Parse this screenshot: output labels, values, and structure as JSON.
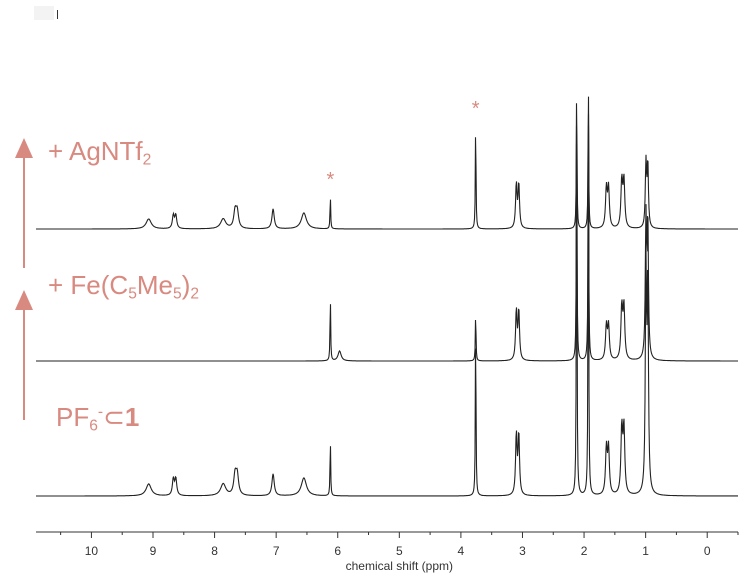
{
  "labels": {
    "top": {
      "main": "+ AgNTf",
      "sub": "2"
    },
    "middle": {
      "prefix": "+ Fe(C",
      "sub1": "5",
      "mid": "Me",
      "sub2": "5",
      "suffix": ")",
      "sub3": "2"
    },
    "bottom": {
      "prefix": "PF",
      "sub": "6",
      "sup": "-",
      "subset": "⊂",
      "bold": "1"
    }
  },
  "stars": [
    "*",
    "*"
  ],
  "chart_data": {
    "type": "line",
    "xlabel": "chemical shift (ppm)",
    "x_ticks": [
      10,
      9,
      8,
      7,
      6,
      5,
      4,
      3,
      2,
      1,
      0
    ],
    "xlim": [
      10.9,
      -0.5
    ],
    "x_reversed": true,
    "arrow_color": "#d98a80",
    "series": [
      {
        "peaks": [
          {
            "x": 9.07,
            "h": 10,
            "w": 0.05
          },
          {
            "x": 8.65,
            "h": 24,
            "w": 0.018,
            "split": 0.04
          },
          {
            "x": 7.86,
            "h": 10,
            "w": 0.05
          },
          {
            "x": 7.65,
            "h": 30,
            "w": 0.025,
            "split": 0.035
          },
          {
            "x": 7.05,
            "h": 20,
            "w": 0.022
          },
          {
            "x": 6.55,
            "h": 16,
            "w": 0.05
          },
          {
            "x": 6.12,
            "h": 34,
            "w": 0.006
          },
          {
            "x": 3.76,
            "h": 112,
            "w": 0.006
          },
          {
            "x": 3.08,
            "h": 80,
            "w": 0.014,
            "split": 0.04
          },
          {
            "x": 2.12,
            "h": 150,
            "w": 0.006
          },
          {
            "x": 1.93,
            "h": 150,
            "w": 0.006
          },
          {
            "x": 1.62,
            "h": 72,
            "w": 0.016,
            "split": 0.035
          },
          {
            "x": 1.37,
            "h": 86,
            "w": 0.016,
            "split": 0.035
          },
          {
            "x": 0.98,
            "h": 118,
            "w": 0.012,
            "split": 0.03
          }
        ]
      },
      {
        "peaks": [
          {
            "x": 6.12,
            "h": 66,
            "w": 0.006
          },
          {
            "x": 5.97,
            "h": 10,
            "w": 0.03
          },
          {
            "x": 3.76,
            "h": 50,
            "w": 0.006
          },
          {
            "x": 3.08,
            "h": 90,
            "w": 0.014,
            "split": 0.04
          },
          {
            "x": 2.12,
            "h": 280,
            "w": 0.006
          },
          {
            "x": 1.93,
            "h": 280,
            "w": 0.006
          },
          {
            "x": 1.62,
            "h": 62,
            "w": 0.016,
            "split": 0.035
          },
          {
            "x": 1.37,
            "h": 96,
            "w": 0.016,
            "split": 0.035
          },
          {
            "x": 0.98,
            "h": 250,
            "w": 0.012,
            "split": 0.03
          }
        ]
      },
      {
        "peaks": [
          {
            "x": 9.07,
            "h": 12,
            "w": 0.05
          },
          {
            "x": 8.65,
            "h": 30,
            "w": 0.018,
            "split": 0.04
          },
          {
            "x": 7.86,
            "h": 12,
            "w": 0.05
          },
          {
            "x": 7.65,
            "h": 36,
            "w": 0.025,
            "split": 0.035
          },
          {
            "x": 7.05,
            "h": 22,
            "w": 0.022
          },
          {
            "x": 6.55,
            "h": 18,
            "w": 0.05
          },
          {
            "x": 6.12,
            "h": 58,
            "w": 0.006
          },
          {
            "x": 3.76,
            "h": 180,
            "w": 0.006
          },
          {
            "x": 3.08,
            "h": 110,
            "w": 0.014,
            "split": 0.04
          },
          {
            "x": 2.12,
            "h": 420,
            "w": 0.006
          },
          {
            "x": 1.93,
            "h": 420,
            "w": 0.006
          },
          {
            "x": 1.62,
            "h": 84,
            "w": 0.016,
            "split": 0.035
          },
          {
            "x": 1.37,
            "h": 120,
            "w": 0.016,
            "split": 0.035
          },
          {
            "x": 0.98,
            "h": 390,
            "w": 0.012,
            "split": 0.03
          }
        ]
      }
    ],
    "star_positions_ppm": [
      6.12,
      3.76
    ]
  }
}
